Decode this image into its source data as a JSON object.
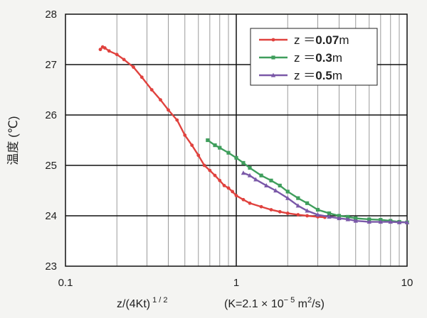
{
  "chart_data": {
    "type": "line",
    "xscale": "log",
    "xlim": [
      0.1,
      10
    ],
    "ylim": [
      23,
      28
    ],
    "grid": true,
    "legend_position": "top-right",
    "x_ticks": [
      "0.1",
      "1",
      "10"
    ],
    "y_ticks": [
      "23",
      "24",
      "25",
      "26",
      "27",
      "28"
    ],
    "ylabel": "温度 (℃)",
    "xlabel": "z/(4Kt)",
    "xlabel_exp": "1 / 2",
    "xlabel_note_pre": "(K=2.1 × 10",
    "xlabel_note_exp1": "− 5",
    "xlabel_note_mid": " m",
    "xlabel_note_exp2": "2",
    "xlabel_note_post": "/s)",
    "series": [
      {
        "name": "z ＝0.07m",
        "legend_pre": "z ＝",
        "legend_val": "0.07",
        "legend_unit": "m",
        "color": "#e0423e",
        "marker": "circle",
        "x": [
          0.16,
          0.165,
          0.17,
          0.18,
          0.2,
          0.22,
          0.25,
          0.28,
          0.32,
          0.36,
          0.4,
          0.45,
          0.5,
          0.55,
          0.6,
          0.65,
          0.7,
          0.75,
          0.8,
          0.85,
          0.9,
          0.95,
          1.0,
          1.1,
          1.2,
          1.4,
          1.6,
          1.8,
          2.0,
          2.3,
          2.6,
          3.0,
          3.3
        ],
        "y": [
          27.3,
          27.35,
          27.33,
          27.27,
          27.2,
          27.1,
          26.95,
          26.75,
          26.5,
          26.3,
          26.1,
          25.9,
          25.6,
          25.4,
          25.2,
          25.0,
          24.9,
          24.8,
          24.7,
          24.6,
          24.55,
          24.48,
          24.4,
          24.32,
          24.25,
          24.18,
          24.12,
          24.08,
          24.05,
          24.02,
          24.0,
          23.98,
          23.97
        ]
      },
      {
        "name": "z ＝0.3m",
        "legend_pre": "z ＝",
        "legend_val": "0.3",
        "legend_unit": "m",
        "color": "#3f9e5c",
        "marker": "square",
        "x": [
          0.68,
          0.75,
          0.8,
          0.9,
          1.0,
          1.1,
          1.2,
          1.4,
          1.6,
          1.8,
          2.0,
          2.3,
          2.6,
          3.0,
          3.5,
          4.0,
          4.5,
          5.0,
          6.0,
          7.0,
          8.0,
          9.0,
          10.0
        ],
        "y": [
          25.5,
          25.4,
          25.35,
          25.25,
          25.15,
          25.05,
          24.95,
          24.8,
          24.7,
          24.6,
          24.48,
          24.35,
          24.25,
          24.12,
          24.05,
          24.0,
          23.98,
          23.95,
          23.93,
          23.92,
          23.9,
          23.88,
          23.87
        ]
      },
      {
        "name": "z ＝0.5m",
        "legend_pre": "z ＝",
        "legend_val": "0.5",
        "legend_unit": "m",
        "color": "#7a58a8",
        "marker": "triangle",
        "x": [
          1.1,
          1.2,
          1.3,
          1.5,
          1.7,
          2.0,
          2.3,
          2.6,
          3.0,
          3.5,
          4.0,
          4.5,
          5.0,
          6.0,
          7.0,
          8.0,
          9.0,
          10.0
        ],
        "y": [
          24.85,
          24.8,
          24.72,
          24.6,
          24.5,
          24.35,
          24.2,
          24.1,
          24.02,
          23.98,
          23.95,
          23.93,
          23.9,
          23.88,
          23.88,
          23.88,
          23.87,
          23.87
        ]
      }
    ]
  }
}
